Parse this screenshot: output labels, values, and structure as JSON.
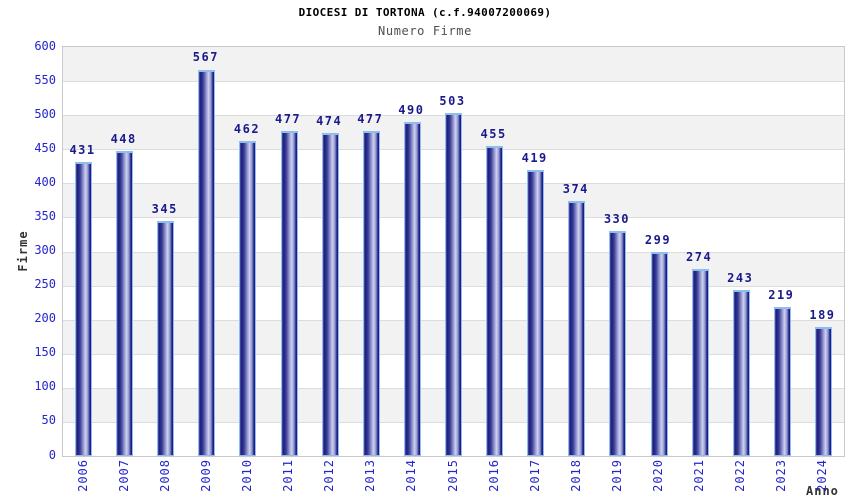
{
  "chart_data": {
    "type": "bar",
    "title": "DIOCESI DI TORTONA (c.f.94007200069)",
    "subtitle": "Numero Firme",
    "xlabel": "Anno",
    "ylabel": "Firme",
    "categories": [
      "2006",
      "2007",
      "2008",
      "2009",
      "2010",
      "2011",
      "2012",
      "2013",
      "2014",
      "2015",
      "2016",
      "2017",
      "2018",
      "2019",
      "2020",
      "2021",
      "2022",
      "2023",
      "2024"
    ],
    "values": [
      431,
      448,
      345,
      567,
      462,
      477,
      474,
      477,
      490,
      503,
      455,
      419,
      374,
      330,
      299,
      274,
      243,
      219,
      189
    ],
    "ylim": [
      0,
      600
    ],
    "yticks": [
      0,
      50,
      100,
      150,
      200,
      250,
      300,
      350,
      400,
      450,
      500,
      550,
      600
    ],
    "grid": "horizontal gridlines with alternating gray/white bands",
    "legend": "none",
    "colors": {
      "tick_label": "#2525cc",
      "value_label": "#1a1a8c",
      "band_gray": "#f2f2f2",
      "band_white": "#ffffff",
      "grid_line": "#dcdcdc",
      "plot_border": "#c9c9c9",
      "bar_outline": "#8ebdf0",
      "bar_gradient": [
        "#5558a8",
        "#1c1c7c",
        "#3d3f96",
        "#9095cf",
        "#ced2f0",
        "#8e93cc",
        "#23238a",
        "#1a1a7a"
      ],
      "title_color": "#000000",
      "subtitle_color": "#4f4f4f",
      "axis_title_color": "#333333"
    }
  }
}
